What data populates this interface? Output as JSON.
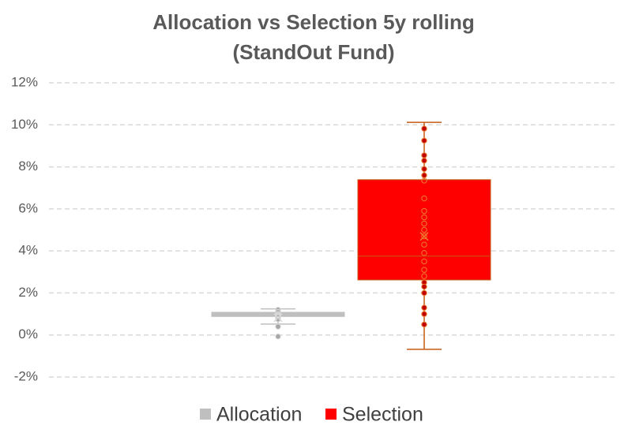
{
  "chart_data": {
    "type": "box",
    "title": [
      "Allocation vs Selection 5y rolling",
      "(StandOut Fund)"
    ],
    "ylim": [
      -2,
      12
    ],
    "yticks": [
      {
        "value": -2,
        "label": "-2%"
      },
      {
        "value": 0,
        "label": "0%"
      },
      {
        "value": 2,
        "label": "2%"
      },
      {
        "value": 4,
        "label": "4%"
      },
      {
        "value": 6,
        "label": "6%"
      },
      {
        "value": 8,
        "label": "8%"
      },
      {
        "value": 10,
        "label": "10%"
      },
      {
        "value": 12,
        "label": "12%"
      }
    ],
    "grid": true,
    "legend": "bottom",
    "series": [
      {
        "name": "Allocation",
        "color": "#bfbfbf",
        "line_color": "#bfbfbf",
        "min": 0.52,
        "q1": 0.88,
        "median": 0.98,
        "q3": 1.08,
        "max": 1.24,
        "mean": 0.82,
        "points": [
          1.2,
          1.1,
          1.0,
          0.95,
          0.9,
          0.85,
          0.75,
          0.4,
          -0.07
        ]
      },
      {
        "name": "Selection",
        "color": "#ff0000",
        "line_color": "#c55a11",
        "min": -0.68,
        "q1": 2.62,
        "median": 3.75,
        "q3": 7.39,
        "max": 10.12,
        "mean": 4.69,
        "points": [
          9.82,
          9.25,
          8.55,
          8.3,
          7.9,
          7.6,
          7.35,
          6.5,
          5.9,
          5.6,
          5.3,
          5.0,
          4.7,
          4.3,
          3.9,
          3.5,
          3.1,
          2.8,
          2.5,
          2.3,
          2.0,
          1.3,
          1.0,
          0.5
        ]
      }
    ]
  }
}
